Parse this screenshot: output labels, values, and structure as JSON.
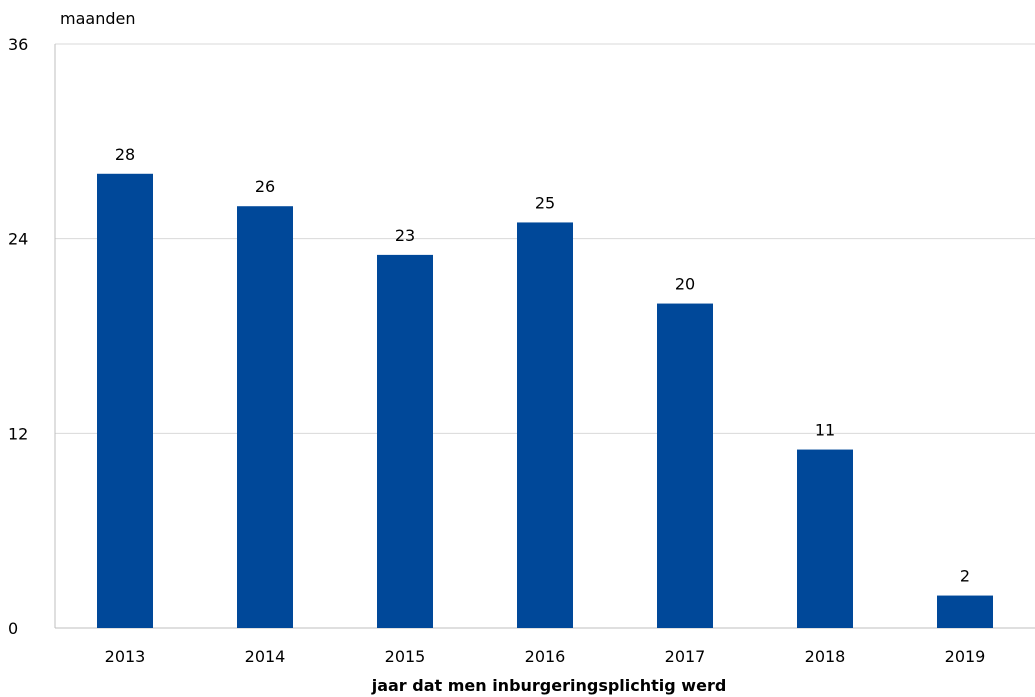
{
  "chart_data": {
    "type": "bar",
    "categories": [
      "2013",
      "2014",
      "2015",
      "2016",
      "2017",
      "2018",
      "2019"
    ],
    "values": [
      28,
      26,
      23,
      25,
      20,
      11,
      2
    ],
    "data_labels": [
      "28",
      "26",
      "23",
      "25",
      "20",
      "11",
      "2"
    ],
    "title": "",
    "xlabel": "jaar dat men inburgeringsplichtig werd",
    "ylabel": "maanden",
    "ylim": [
      0,
      36
    ],
    "yticks": [
      0,
      12,
      24,
      36
    ],
    "ytick_labels": [
      "0",
      "12",
      "24",
      "36"
    ],
    "grid": true,
    "legend": "none",
    "colors": {
      "bar": "#004899",
      "grid": "#d9d9d9",
      "axis": "#bfbfbf"
    }
  }
}
